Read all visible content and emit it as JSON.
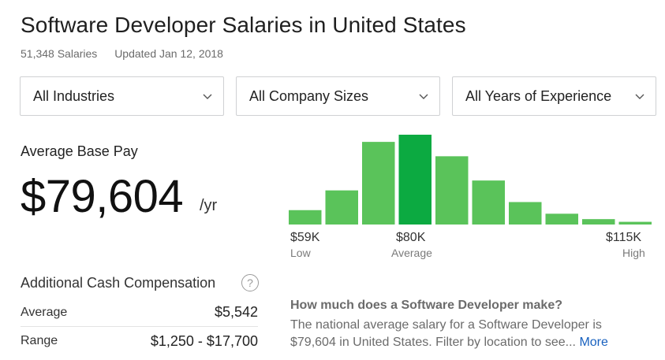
{
  "header": {
    "title": "Software Developer Salaries in United States",
    "salary_count": "51,348 Salaries",
    "updated": "Updated Jan 12, 2018"
  },
  "filters": [
    {
      "label": "All Industries",
      "icon": "chevron-down-icon"
    },
    {
      "label": "All Company Sizes",
      "icon": "chevron-down-icon"
    },
    {
      "label": "All Years of Experience",
      "icon": "chevron-down-icon"
    }
  ],
  "base_pay": {
    "label": "Average Base Pay",
    "amount": "$79,604",
    "unit": "/yr"
  },
  "chart_data": {
    "type": "bar",
    "values": [
      16,
      38,
      92,
      100,
      76,
      49,
      25,
      12,
      6,
      3
    ],
    "highlight_index": 3,
    "ylim": [
      0,
      100
    ],
    "ticks": [
      {
        "label": "$59K",
        "sub": "Low"
      },
      {
        "label": "$80K",
        "sub": "Average"
      },
      {
        "label": "$115K",
        "sub": "High"
      }
    ],
    "colors": {
      "bar": "#5ac35a",
      "highlight": "#0caa41"
    }
  },
  "additional_cash": {
    "label": "Additional Cash Compensation",
    "help_icon": "?",
    "rows": [
      {
        "label": "Average",
        "value": "$5,542"
      },
      {
        "label": "Range",
        "value": "$1,250 - $17,700"
      }
    ]
  },
  "faq": {
    "question": "How much does a Software Developer make?",
    "answer": "The national average salary for a Software Developer is $79,604 in United States. Filter by location to see...",
    "more_link": "More"
  },
  "colors": {
    "accent_link": "#1861bf",
    "bar": "#5ac35a",
    "bar_highlight": "#0caa41"
  }
}
